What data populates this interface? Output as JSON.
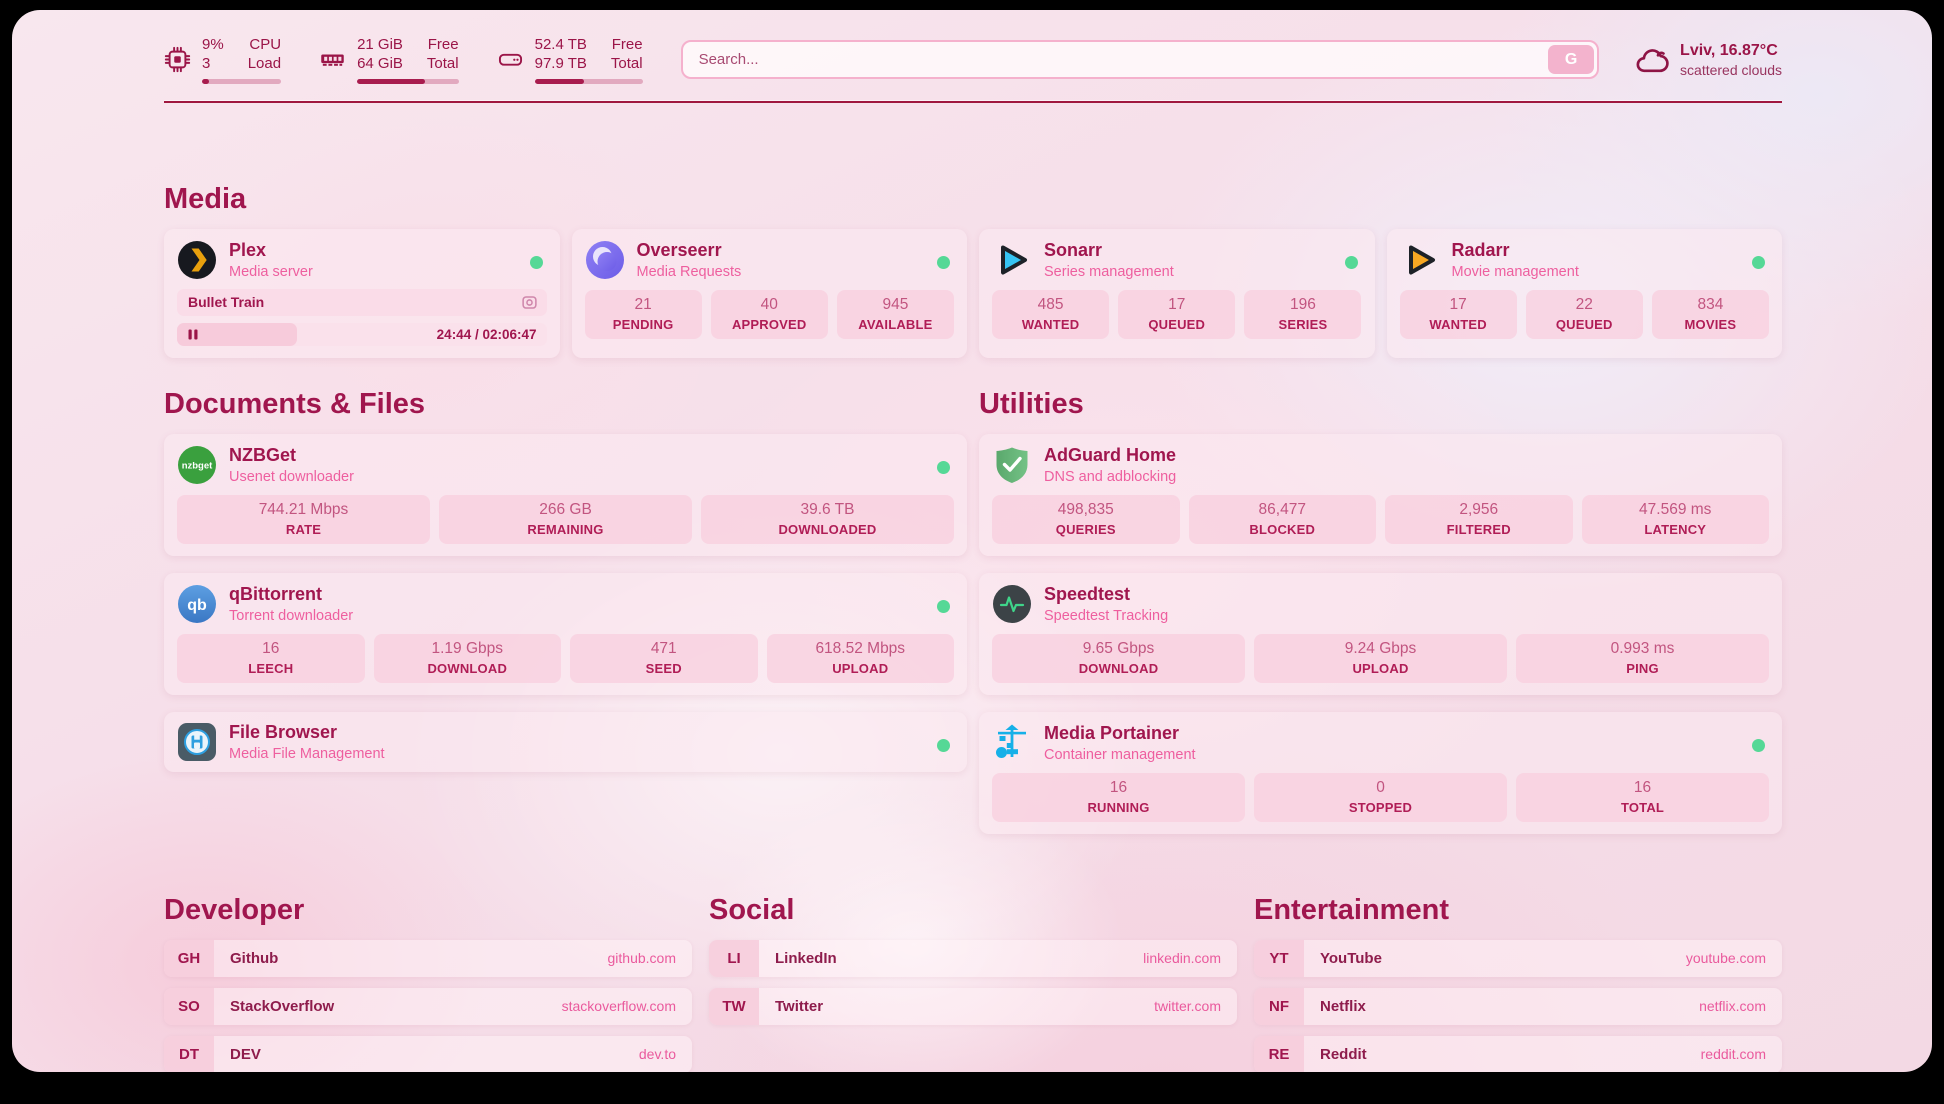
{
  "header": {
    "resources": [
      {
        "icon": "cpu-icon",
        "values": [
          "9%",
          "3"
        ],
        "labels": [
          "CPU",
          "Load"
        ],
        "progress": 9
      },
      {
        "icon": "memory-icon",
        "values": [
          "21 GiB",
          "64 GiB"
        ],
        "labels": [
          "Free",
          "Total"
        ],
        "progress": 67
      },
      {
        "icon": "disk-icon",
        "values": [
          "52.4 TB",
          "97.9 TB"
        ],
        "labels": [
          "Free",
          "Total"
        ],
        "progress": 46
      }
    ],
    "search": {
      "placeholder": "Search...",
      "button_label": "G"
    },
    "weather": {
      "icon": "cloud-icon",
      "location": "Lviv, 16.87°C",
      "condition": "scattered clouds"
    }
  },
  "sections": {
    "media": {
      "title": "Media",
      "plex": {
        "name": "Plex",
        "subtitle": "Media server",
        "icon": "plex-icon",
        "status": "online",
        "now_playing": "Bullet Train",
        "time": "24:44 / 02:06:47"
      },
      "overseerr": {
        "name": "Overseerr",
        "subtitle": "Media Requests",
        "icon": "overseerr-icon",
        "status": "online",
        "stats": [
          {
            "value": "21",
            "label": "PENDING"
          },
          {
            "value": "40",
            "label": "APPROVED"
          },
          {
            "value": "945",
            "label": "AVAILABLE"
          }
        ]
      },
      "sonarr": {
        "name": "Sonarr",
        "subtitle": "Series management",
        "icon": "sonarr-icon",
        "status": "online",
        "stats": [
          {
            "value": "485",
            "label": "WANTED"
          },
          {
            "value": "17",
            "label": "QUEUED"
          },
          {
            "value": "196",
            "label": "SERIES"
          }
        ]
      },
      "radarr": {
        "name": "Radarr",
        "subtitle": "Movie management",
        "icon": "radarr-icon",
        "status": "online",
        "stats": [
          {
            "value": "17",
            "label": "WANTED"
          },
          {
            "value": "22",
            "label": "QUEUED"
          },
          {
            "value": "834",
            "label": "MOVIES"
          }
        ]
      }
    },
    "documents": {
      "title": "Documents & Files",
      "nzbget": {
        "name": "NZBGet",
        "subtitle": "Usenet downloader",
        "icon": "nzbget-icon",
        "status": "online",
        "stats": [
          {
            "value": "744.21 Mbps",
            "label": "RATE"
          },
          {
            "value": "266 GB",
            "label": "REMAINING"
          },
          {
            "value": "39.6 TB",
            "label": "DOWNLOADED"
          }
        ]
      },
      "qbittorrent": {
        "name": "qBittorrent",
        "subtitle": "Torrent downloader",
        "icon": "qbittorrent-icon",
        "status": "online",
        "stats": [
          {
            "value": "16",
            "label": "LEECH"
          },
          {
            "value": "1.19 Gbps",
            "label": "DOWNLOAD"
          },
          {
            "value": "471",
            "label": "SEED"
          },
          {
            "value": "618.52 Mbps",
            "label": "UPLOAD"
          }
        ]
      },
      "filebrowser": {
        "name": "File Browser",
        "subtitle": "Media File Management",
        "icon": "filebrowser-icon",
        "status": "online"
      }
    },
    "utilities": {
      "title": "Utilities",
      "adguard": {
        "name": "AdGuard Home",
        "subtitle": "DNS and adblocking",
        "icon": "adguard-icon",
        "stats": [
          {
            "value": "498,835",
            "label": "QUERIES"
          },
          {
            "value": "86,477",
            "label": "BLOCKED"
          },
          {
            "value": "2,956",
            "label": "FILTERED"
          },
          {
            "value": "47.569 ms",
            "label": "LATENCY"
          }
        ]
      },
      "speedtest": {
        "name": "Speedtest",
        "subtitle": "Speedtest Tracking",
        "icon": "speedtest-icon",
        "stats": [
          {
            "value": "9.65 Gbps",
            "label": "DOWNLOAD"
          },
          {
            "value": "9.24 Gbps",
            "label": "UPLOAD"
          },
          {
            "value": "0.993 ms",
            "label": "PING"
          }
        ]
      },
      "portainer": {
        "name": "Media Portainer",
        "subtitle": "Container management",
        "icon": "portainer-icon",
        "status": "online",
        "stats": [
          {
            "value": "16",
            "label": "RUNNING"
          },
          {
            "value": "0",
            "label": "STOPPED"
          },
          {
            "value": "16",
            "label": "TOTAL"
          }
        ]
      }
    },
    "bookmarks": [
      {
        "title": "Developer",
        "items": [
          {
            "abbr": "GH",
            "label": "Github",
            "url": "github.com"
          },
          {
            "abbr": "SO",
            "label": "StackOverflow",
            "url": "stackoverflow.com"
          },
          {
            "abbr": "DT",
            "label": "DEV",
            "url": "dev.to"
          }
        ]
      },
      {
        "title": "Social",
        "items": [
          {
            "abbr": "LI",
            "label": "LinkedIn",
            "url": "linkedin.com"
          },
          {
            "abbr": "TW",
            "label": "Twitter",
            "url": "twitter.com"
          }
        ]
      },
      {
        "title": "Entertainment",
        "items": [
          {
            "abbr": "YT",
            "label": "YouTube",
            "url": "youtube.com"
          },
          {
            "abbr": "NF",
            "label": "Netflix",
            "url": "netflix.com"
          },
          {
            "abbr": "RE",
            "label": "Reddit",
            "url": "reddit.com"
          }
        ]
      }
    ]
  },
  "colors": {
    "accent": "#a0164e",
    "subtitle_pink": "#ee5f9f",
    "status_online": "#55d896",
    "progress_fill": "#a81c4e",
    "rule": "#a0183f"
  }
}
